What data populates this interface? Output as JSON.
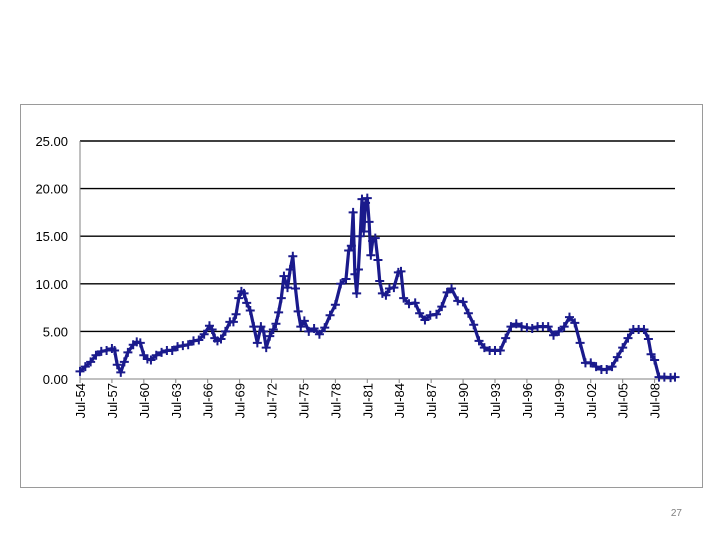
{
  "slide": {
    "number": "27"
  },
  "colors": {
    "series": "#1a1a8c",
    "gridline": "#000000",
    "frame": "#9a9a9a",
    "background": "#ffffff"
  },
  "chart_data": {
    "type": "line",
    "title": "",
    "xlabel": "",
    "ylabel": "",
    "ylim": [
      0,
      25
    ],
    "yticks": [
      0,
      5,
      10,
      15,
      20,
      25
    ],
    "ytick_labels": [
      "0.00",
      "5.00",
      "10.00",
      "15.00",
      "20.00",
      "25.00"
    ],
    "grid": "horizontal",
    "legend": "none",
    "x_range": [
      "1954-07",
      "2010-06"
    ],
    "xtick_dates": [
      "1954-07",
      "1957-07",
      "1960-07",
      "1963-07",
      "1966-07",
      "1969-07",
      "1972-07",
      "1975-07",
      "1978-07",
      "1981-07",
      "1984-07",
      "1987-07",
      "1990-07",
      "1993-07",
      "1996-07",
      "1999-07",
      "2002-07",
      "2005-07",
      "2008-07"
    ],
    "xtick_labels": [
      "Jul-54",
      "Jul-57",
      "Jul-60",
      "Jul-63",
      "Jul-66",
      "Jul-69",
      "Jul-72",
      "Jul-75",
      "Jul-78",
      "Jul-81",
      "Jul-84",
      "Jul-87",
      "Jul-90",
      "Jul-93",
      "Jul-96",
      "Jul-99",
      "Jul-02",
      "Jul-05",
      "Jul-08"
    ],
    "marker": "plus",
    "series": [
      {
        "points": [
          [
            "1954-07",
            0.8
          ],
          [
            "1955-01",
            1.3
          ],
          [
            "1955-07",
            1.8
          ],
          [
            "1956-01",
            2.5
          ],
          [
            "1956-07",
            2.9
          ],
          [
            "1957-01",
            3.0
          ],
          [
            "1957-07",
            3.2
          ],
          [
            "1957-10",
            3.0
          ],
          [
            "1958-01",
            1.5
          ],
          [
            "1958-05",
            0.7
          ],
          [
            "1958-09",
            1.8
          ],
          [
            "1959-01",
            2.8
          ],
          [
            "1959-07",
            3.6
          ],
          [
            "1959-11",
            3.9
          ],
          [
            "1960-03",
            3.8
          ],
          [
            "1960-07",
            2.5
          ],
          [
            "1960-11",
            2.1
          ],
          [
            "1961-03",
            2.0
          ],
          [
            "1961-09",
            2.5
          ],
          [
            "1962-03",
            2.8
          ],
          [
            "1962-09",
            3.0
          ],
          [
            "1963-03",
            3.0
          ],
          [
            "1963-09",
            3.4
          ],
          [
            "1964-03",
            3.5
          ],
          [
            "1964-09",
            3.6
          ],
          [
            "1965-03",
            4.0
          ],
          [
            "1965-09",
            4.1
          ],
          [
            "1966-03",
            4.7
          ],
          [
            "1966-09",
            5.6
          ],
          [
            "1966-12",
            5.2
          ],
          [
            "1967-03",
            4.3
          ],
          [
            "1967-06",
            4.0
          ],
          [
            "1967-10",
            4.2
          ],
          [
            "1968-03",
            5.0
          ],
          [
            "1968-08",
            6.0
          ],
          [
            "1968-12",
            6.0
          ],
          [
            "1969-03",
            6.8
          ],
          [
            "1969-06",
            8.5
          ],
          [
            "1969-09",
            9.2
          ],
          [
            "1969-12",
            9.0
          ],
          [
            "1970-03",
            8.0
          ],
          [
            "1970-07",
            7.2
          ],
          [
            "1970-11",
            5.5
          ],
          [
            "1971-03",
            3.8
          ],
          [
            "1971-07",
            5.5
          ],
          [
            "1971-10",
            5.0
          ],
          [
            "1972-01",
            3.3
          ],
          [
            "1972-05",
            4.5
          ],
          [
            "1972-09",
            5.2
          ],
          [
            "1972-12",
            5.8
          ],
          [
            "1973-03",
            7.0
          ],
          [
            "1973-06",
            8.5
          ],
          [
            "1973-09",
            10.8
          ],
          [
            "1974-01",
            9.6
          ],
          [
            "1974-04",
            11.5
          ],
          [
            "1974-07",
            12.9
          ],
          [
            "1974-10",
            9.5
          ],
          [
            "1975-01",
            7.1
          ],
          [
            "1975-04",
            5.5
          ],
          [
            "1975-08",
            6.1
          ],
          [
            "1976-01",
            5.0
          ],
          [
            "1976-07",
            5.3
          ],
          [
            "1977-01",
            4.7
          ],
          [
            "1977-07",
            5.4
          ],
          [
            "1978-01",
            6.7
          ],
          [
            "1978-07",
            7.8
          ],
          [
            "1979-01",
            10.0
          ],
          [
            "1979-07",
            10.5
          ],
          [
            "1979-10",
            13.5
          ],
          [
            "1980-01",
            14.0
          ],
          [
            "1980-03",
            17.5
          ],
          [
            "1980-05",
            11.0
          ],
          [
            "1980-07",
            9.0
          ],
          [
            "1980-09",
            11.5
          ],
          [
            "1980-11",
            15.0
          ],
          [
            "1981-01",
            18.9
          ],
          [
            "1981-03",
            15.5
          ],
          [
            "1981-05",
            18.5
          ],
          [
            "1981-07",
            19.0
          ],
          [
            "1981-09",
            16.5
          ],
          [
            "1981-11",
            13.0
          ],
          [
            "1982-01",
            14.5
          ],
          [
            "1982-04",
            14.8
          ],
          [
            "1982-07",
            12.5
          ],
          [
            "1982-09",
            10.3
          ],
          [
            "1982-12",
            9.0
          ],
          [
            "1983-04",
            8.8
          ],
          [
            "1983-08",
            9.5
          ],
          [
            "1984-01",
            9.6
          ],
          [
            "1984-06",
            11.2
          ],
          [
            "1984-09",
            11.3
          ],
          [
            "1984-12",
            8.5
          ],
          [
            "1985-06",
            7.9
          ],
          [
            "1986-01",
            8.0
          ],
          [
            "1986-06",
            6.9
          ],
          [
            "1986-12",
            6.2
          ],
          [
            "1987-06",
            6.7
          ],
          [
            "1988-01",
            6.8
          ],
          [
            "1988-07",
            7.6
          ],
          [
            "1989-01",
            9.1
          ],
          [
            "1989-06",
            9.5
          ],
          [
            "1990-01",
            8.2
          ],
          [
            "1990-07",
            8.1
          ],
          [
            "1991-01",
            6.9
          ],
          [
            "1991-07",
            5.7
          ],
          [
            "1992-01",
            4.0
          ],
          [
            "1992-07",
            3.3
          ],
          [
            "1993-01",
            3.0
          ],
          [
            "1993-07",
            3.0
          ],
          [
            "1994-01",
            3.0
          ],
          [
            "1994-07",
            4.3
          ],
          [
            "1995-01",
            5.5
          ],
          [
            "1995-07",
            5.8
          ],
          [
            "1996-01",
            5.5
          ],
          [
            "1996-07",
            5.4
          ],
          [
            "1997-01",
            5.3
          ],
          [
            "1997-07",
            5.5
          ],
          [
            "1998-01",
            5.5
          ],
          [
            "1998-07",
            5.5
          ],
          [
            "1999-01",
            4.6
          ],
          [
            "1999-07",
            5.0
          ],
          [
            "2000-01",
            5.5
          ],
          [
            "2000-07",
            6.5
          ],
          [
            "2001-01",
            5.9
          ],
          [
            "2001-07",
            3.8
          ],
          [
            "2002-01",
            1.7
          ],
          [
            "2002-07",
            1.7
          ],
          [
            "2003-01",
            1.3
          ],
          [
            "2003-07",
            1.0
          ],
          [
            "2004-01",
            1.0
          ],
          [
            "2004-07",
            1.3
          ],
          [
            "2005-01",
            2.3
          ],
          [
            "2005-07",
            3.3
          ],
          [
            "2006-01",
            4.3
          ],
          [
            "2006-07",
            5.2
          ],
          [
            "2007-01",
            5.2
          ],
          [
            "2007-07",
            5.2
          ],
          [
            "2007-12",
            4.2
          ],
          [
            "2008-03",
            2.6
          ],
          [
            "2008-07",
            2.0
          ],
          [
            "2008-12",
            0.2
          ],
          [
            "2009-06",
            0.2
          ],
          [
            "2010-01",
            0.15
          ],
          [
            "2010-06",
            0.2
          ]
        ]
      }
    ]
  }
}
